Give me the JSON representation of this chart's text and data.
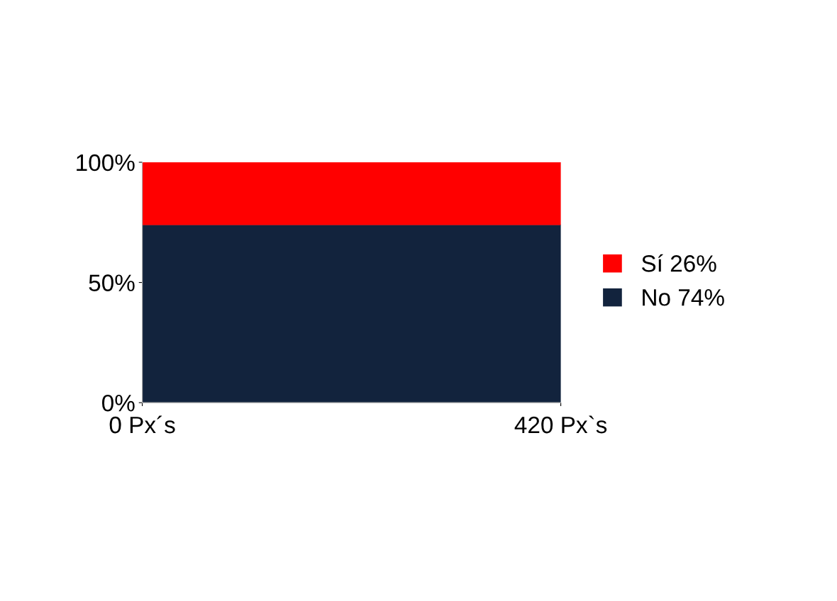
{
  "chart_data": {
    "type": "area",
    "stacked": true,
    "categories": [
      "0 Px´s",
      "420 Px`s"
    ],
    "series": [
      {
        "name": "No 74%",
        "color": "#12233d",
        "values": [
          74,
          74
        ]
      },
      {
        "name": "Sí 26%",
        "color": "#ff0000",
        "values": [
          26,
          26
        ]
      }
    ],
    "ylim": [
      0,
      100
    ],
    "yticks": [
      {
        "value": 0,
        "label": "0%"
      },
      {
        "value": 50,
        "label": "50%"
      },
      {
        "value": 100,
        "label": "100%"
      }
    ],
    "legend": "right"
  }
}
